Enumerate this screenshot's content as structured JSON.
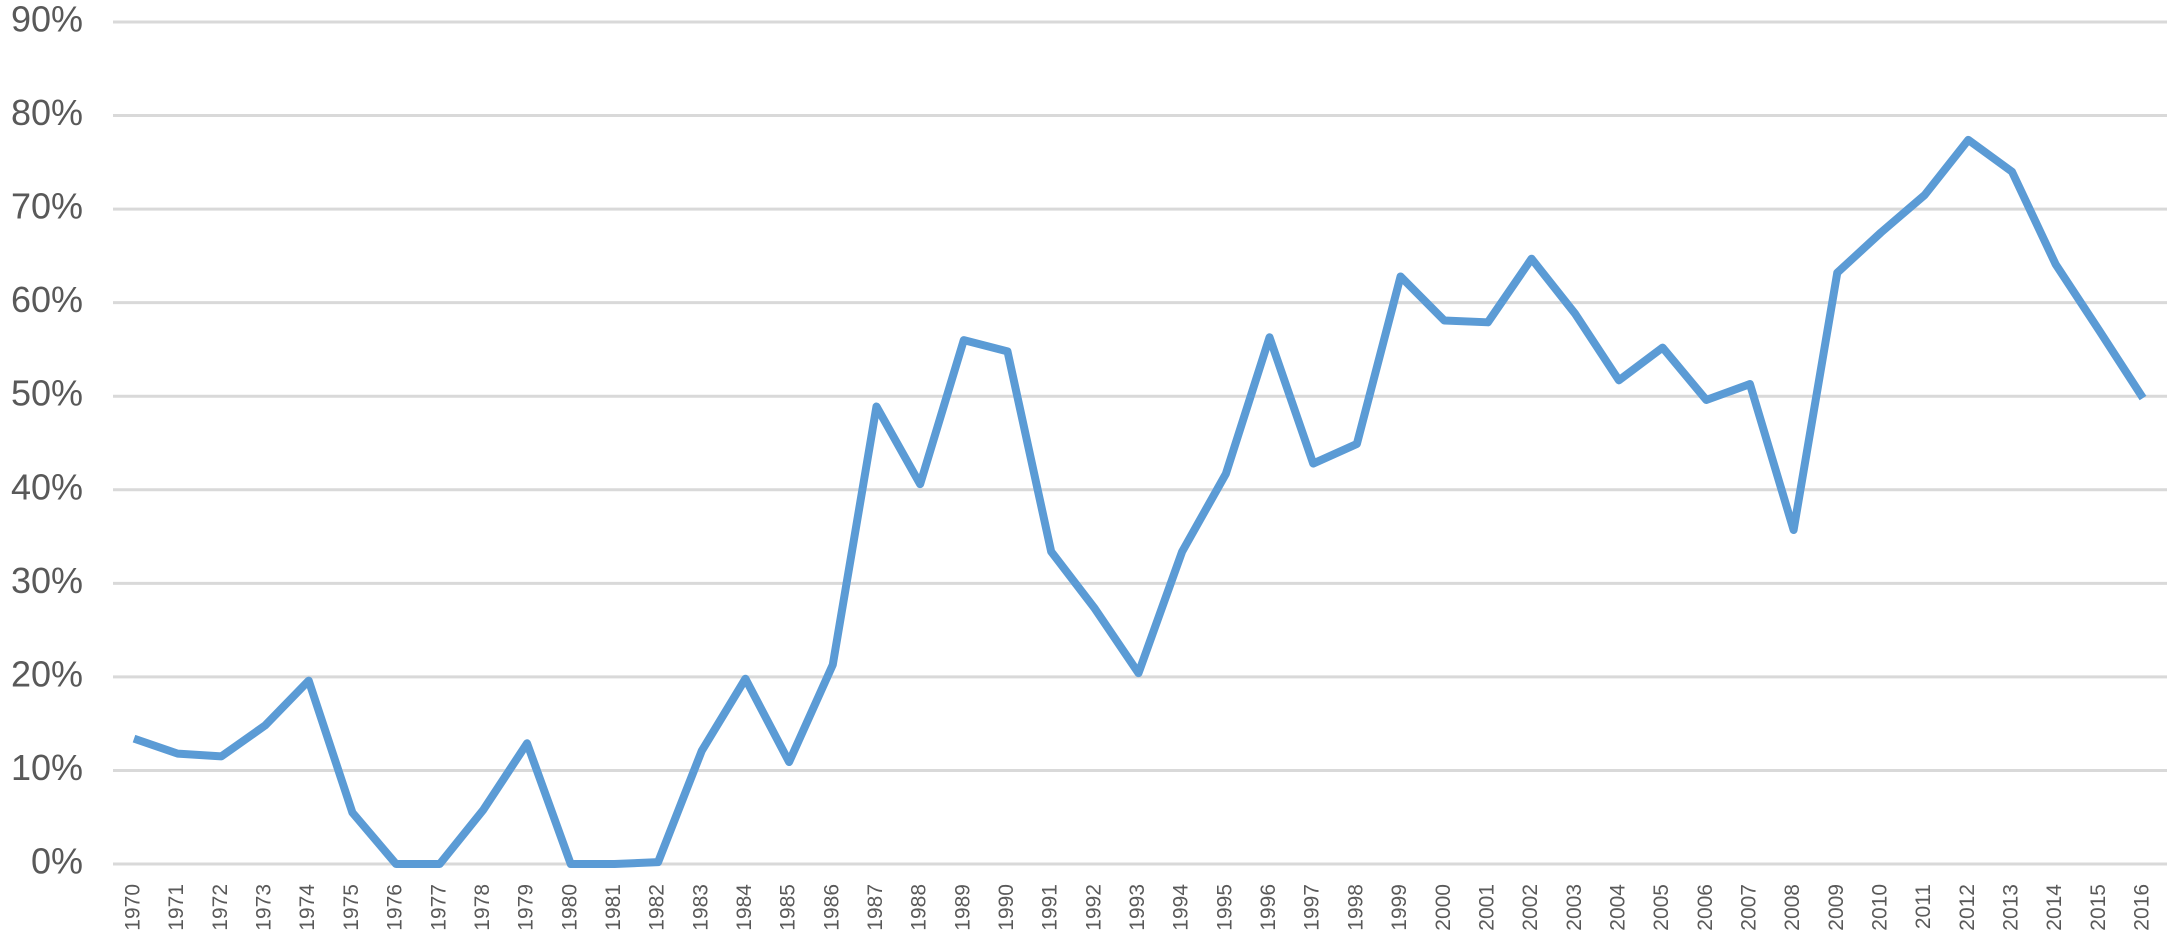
{
  "chart_data": {
    "type": "line",
    "categories": [
      "1970",
      "1971",
      "1972",
      "1973",
      "1974",
      "1975",
      "1976",
      "1977",
      "1978",
      "1979",
      "1980",
      "1981",
      "1982",
      "1983",
      "1984",
      "1985",
      "1986",
      "1987",
      "1988",
      "1989",
      "1990",
      "1991",
      "1992",
      "1993",
      "1994",
      "1995",
      "1996",
      "1997",
      "1998",
      "1999",
      "2000",
      "2001",
      "2002",
      "2003",
      "2004",
      "2005",
      "2006",
      "2007",
      "2008",
      "2009",
      "2010",
      "2011",
      "2012",
      "2013",
      "2014",
      "2015",
      "2016"
    ],
    "series": [
      {
        "color": "#5b9bd5",
        "values": [
          13.4,
          11.8,
          11.5,
          14.8,
          19.6,
          5.5,
          0,
          0,
          5.8,
          12.9,
          0,
          0,
          0.2,
          12.1,
          19.8,
          10.9,
          21.3,
          48.9,
          40.6,
          56.0,
          54.8,
          33.4,
          27.3,
          20.4,
          33.4,
          41.7,
          56.3,
          42.8,
          44.9,
          62.8,
          58.1,
          57.9,
          64.7,
          58.8,
          51.7,
          55.2,
          49.6,
          51.3,
          35.7,
          63.2,
          67.5,
          71.5,
          77.4,
          74.0,
          64.1,
          57.0,
          49.8
        ]
      }
    ],
    "ylim": [
      0,
      90
    ],
    "yticks": [
      {
        "value": 0,
        "label": "0%"
      },
      {
        "value": 10,
        "label": "10%"
      },
      {
        "value": 20,
        "label": "20%"
      },
      {
        "value": 30,
        "label": "30%"
      },
      {
        "value": 40,
        "label": "40%"
      },
      {
        "value": 50,
        "label": "50%"
      },
      {
        "value": 60,
        "label": "60%"
      },
      {
        "value": 70,
        "label": "70%"
      },
      {
        "value": 80,
        "label": "80%"
      },
      {
        "value": 90,
        "label": "90%"
      }
    ],
    "grid": true
  }
}
